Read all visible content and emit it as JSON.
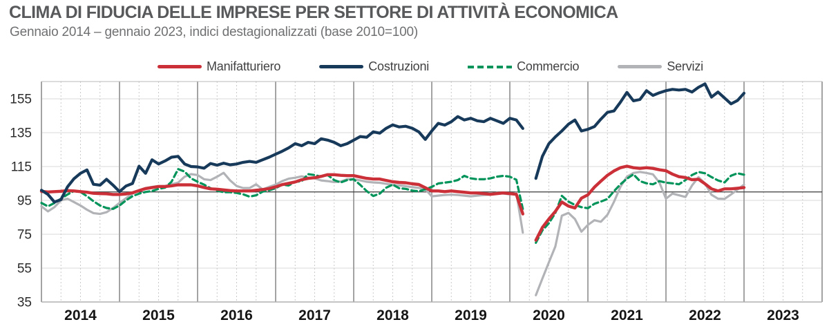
{
  "title": "CLIMA DI FIDUCIA DELLE IMPRESE PER SETTORE DI ATTIVITÀ ECONOMICA",
  "subtitle": "Gennaio 2014 – gennaio  2023, indici destagionalizzati (base 2010=100)",
  "legend": [
    {
      "label": "Manifatturiero",
      "color": "#cb3038",
      "dashed": false
    },
    {
      "label": "Costruzioni",
      "color": "#17395a",
      "dashed": false
    },
    {
      "label": "Commercio",
      "color": "#00935a",
      "dashed": true
    },
    {
      "label": "Servizi",
      "color": "#b1b3b6",
      "dashed": false
    }
  ],
  "chart_data": {
    "type": "line",
    "title": "CLIMA DI FIDUCIA DELLE IMPRESE PER SETTORE DI ATTIVITÀ ECONOMICA",
    "subtitle": "Gennaio 2014 – gennaio  2023, indici destagionalizzati (base 2010=100)",
    "x_monthly_start": "2014-01",
    "x_monthly_end": "2023-01",
    "gap_months": [
      "2020-04"
    ],
    "x_tick_labels": [
      "2014",
      "2015",
      "2016",
      "2017",
      "2018",
      "2019",
      "2020",
      "2021",
      "2022",
      "2023"
    ],
    "y_ticks": [
      35,
      55,
      75,
      95,
      115,
      135,
      155
    ],
    "baseline": 100,
    "grid": true,
    "legend_position": "top",
    "series": [
      {
        "name": "Manifatturiero",
        "color": "#cb3038",
        "style": "solid",
        "values": [
          100.3,
          100,
          100.2,
          100.4,
          100.8,
          100.6,
          100.2,
          99.8,
          99.2,
          99,
          98.9,
          98.5,
          98.5,
          98.8,
          99.5,
          100.8,
          102,
          102.6,
          103.2,
          103.2,
          103.6,
          104.2,
          104.2,
          104.2,
          103.6,
          102.6,
          101.8,
          101.6,
          101.2,
          100.8,
          100.6,
          100.6,
          100.6,
          101,
          101.4,
          102,
          103,
          104.3,
          105.1,
          105.9,
          107.2,
          108,
          108.4,
          109.2,
          110.2,
          110.2,
          109.8,
          109.6,
          109.6,
          108.8,
          108,
          107.6,
          107.6,
          106.8,
          106,
          105.6,
          105.4,
          104.8,
          104.4,
          102.5,
          100.6,
          100.6,
          100.2,
          100.6,
          100.2,
          99.8,
          99.4,
          99.4,
          99,
          98.6,
          99,
          99.4,
          99,
          98.6,
          87,
          null,
          71.5,
          79,
          84,
          88.5,
          94,
          91.6,
          90.5,
          96.3,
          98.3,
          102.8,
          106.4,
          109.8,
          112.4,
          114.3,
          115.2,
          114.3,
          113.9,
          114.3,
          113.9,
          113.1,
          112.5,
          110.5,
          109,
          108.5,
          107.2,
          107.5,
          104.8,
          101.8,
          100.6,
          101.8,
          101.8,
          102.2,
          102.6
        ]
      },
      {
        "name": "Costruzioni",
        "color": "#17395a",
        "style": "solid",
        "values": [
          101,
          98.5,
          94,
          95.5,
          103,
          107.8,
          111,
          113,
          104.5,
          104,
          107.5,
          104,
          100.2,
          103.5,
          105,
          115.2,
          111,
          119,
          116.5,
          118.3,
          120.5,
          121,
          116.5,
          115,
          114.8,
          114,
          116.8,
          115.8,
          117,
          116,
          116.5,
          117.5,
          118,
          117.5,
          119,
          120.5,
          122.3,
          124,
          126,
          128.5,
          127.3,
          129.3,
          128.5,
          131.4,
          130.6,
          129.3,
          127.3,
          128.5,
          130.6,
          132.7,
          132.3,
          135.5,
          134.7,
          137.6,
          139.6,
          138.4,
          138.8,
          137.6,
          135.5,
          131,
          136,
          140.5,
          139.5,
          141.5,
          144.5,
          142.5,
          143.5,
          142,
          141.5,
          143.5,
          142,
          140.5,
          143.5,
          142.5,
          137.5,
          null,
          108,
          121,
          128.5,
          132.5,
          136,
          140,
          142.5,
          136,
          137,
          138.6,
          143,
          147,
          147.8,
          153,
          158.8,
          153.8,
          154.6,
          159.8,
          157,
          158.6,
          159.8,
          160.6,
          160.2,
          160.6,
          159,
          161.8,
          163.8,
          156,
          159,
          155.5,
          152,
          154,
          158.3
        ]
      },
      {
        "name": "Commercio",
        "color": "#00935a",
        "style": "dashed",
        "values": [
          93.5,
          91.5,
          93.5,
          96,
          98.5,
          100.5,
          100,
          97.5,
          94.5,
          92,
          90.5,
          90,
          92,
          95,
          97.5,
          99,
          100,
          100.5,
          101.8,
          102.5,
          106,
          113.5,
          112,
          108,
          106,
          104.3,
          102.2,
          100.8,
          99.8,
          99.8,
          99.4,
          98.6,
          97.2,
          98,
          100.2,
          101,
          102.2,
          104.3,
          103.8,
          105.9,
          106.4,
          110.5,
          110,
          109,
          110,
          107,
          105.6,
          107,
          107.5,
          104.2,
          100.5,
          97.6,
          99,
          102.5,
          104.3,
          102.2,
          101.8,
          100.8,
          100.4,
          101.5,
          103,
          105,
          105.5,
          106,
          107,
          109.5,
          108,
          107.5,
          107.5,
          108,
          109,
          109.5,
          109,
          107.2,
          90,
          null,
          70,
          77.3,
          81.5,
          87.6,
          97.7,
          94.3,
          92.3,
          91,
          90.4,
          93,
          94.3,
          95.8,
          100.4,
          104.5,
          107.8,
          110.4,
          106.4,
          105.1,
          104.5,
          106.4,
          105.5,
          105.1,
          104.5,
          107,
          110,
          111.8,
          111,
          108.8,
          106.8,
          105.6,
          109.6,
          111,
          110.2
        ]
      },
      {
        "name": "Servizi",
        "color": "#b1b3b6",
        "style": "solid",
        "values": [
          91.5,
          88.5,
          91,
          95,
          96,
          94,
          92,
          89.5,
          87.5,
          87,
          88,
          90.5,
          93.5,
          96.3,
          99,
          101,
          102.3,
          103,
          103.5,
          103.5,
          104.5,
          105.5,
          109,
          110.5,
          110,
          107.5,
          107,
          109,
          111.3,
          106.8,
          103.5,
          102.3,
          102.3,
          104.5,
          101.5,
          103,
          104.3,
          106.4,
          107.8,
          108.4,
          109.2,
          108.4,
          108,
          106.8,
          106.4,
          105.8,
          106.2,
          107.5,
          107.5,
          106.8,
          106,
          105.6,
          105.4,
          104.8,
          104.2,
          103.8,
          103.4,
          102.8,
          102.4,
          101.6,
          97.4,
          97.8,
          98.2,
          98.4,
          98.2,
          97.8,
          97.4,
          97.8,
          98.2,
          98.4,
          99.4,
          99,
          98.6,
          99.4,
          76,
          null,
          39,
          48.8,
          58.4,
          67.8,
          86,
          87.6,
          84,
          76.5,
          80.5,
          83.3,
          82.4,
          86.5,
          94.1,
          103,
          109,
          111.2,
          111.8,
          111.2,
          110.4,
          105.5,
          96,
          99,
          98,
          97,
          103.8,
          108.7,
          105,
          98.3,
          96,
          95.9,
          98.5,
          101.4,
          104.3
        ]
      }
    ]
  }
}
